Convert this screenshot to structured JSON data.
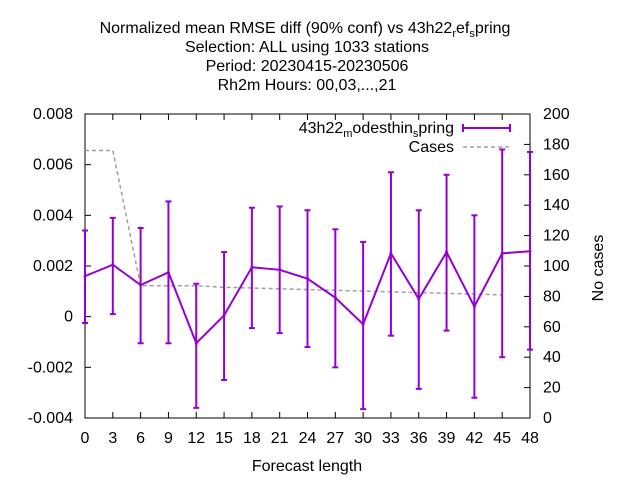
{
  "chart_data": {
    "type": "line",
    "title_lines": [
      "Normalized mean RMSE diff (90% conf) vs 43h22_ref_spring",
      "Selection: ALL using  1033 stations",
      "Period: 20230415-20230506",
      "Rh2m   Hours:  00,03,...,21"
    ],
    "title_line1_parts": {
      "base": "Normalized mean RMSE diff (90% conf) vs 43h22",
      "sub1": "r",
      "mid": "ef",
      "sub2": "s",
      "end": "pring"
    },
    "xlabel": "Forecast length",
    "ylabel": "",
    "y2label": "No cases",
    "xlim": [
      0,
      48
    ],
    "ylim": [
      -0.004,
      0.008
    ],
    "y2lim": [
      0,
      200
    ],
    "xticks": [
      "0",
      "3",
      "6",
      "9",
      "12",
      "15",
      "18",
      "21",
      "24",
      "27",
      "30",
      "33",
      "36",
      "39",
      "42",
      "45",
      "48"
    ],
    "yticks": [
      "-0.004",
      "-0.002",
      "0",
      "0.002",
      "0.004",
      "0.006",
      "0.008"
    ],
    "y2ticks": [
      "0",
      "20",
      "40",
      "60",
      "80",
      "100",
      "120",
      "140",
      "160",
      "180",
      "200"
    ],
    "grid": false,
    "legend_position": "top-right",
    "series": [
      {
        "name": "43h22_modesthin_spring",
        "legend_parts": {
          "base": "43h22",
          "sub1": "m",
          "mid": "odesthin",
          "sub2": "s",
          "end": "pring"
        },
        "color": "#9400d3",
        "axis": "y",
        "style": "errorbar",
        "x": [
          0,
          3,
          6,
          9,
          12,
          15,
          18,
          21,
          24,
          27,
          30,
          33,
          36,
          39,
          42,
          45,
          48
        ],
        "y": [
          0.0016,
          0.00205,
          0.00125,
          0.00175,
          -0.00105,
          5e-05,
          0.00195,
          0.00185,
          0.0015,
          0.00075,
          -0.0003,
          0.0025,
          0.0007,
          0.00255,
          0.0004,
          0.0025,
          0.00258
        ],
        "ylow": [
          -0.00025,
          0.0001,
          -0.00105,
          -0.00105,
          -0.0036,
          -0.0025,
          -0.00045,
          -0.00065,
          -0.0012,
          -0.002,
          -0.00365,
          -0.00075,
          -0.00285,
          -0.00055,
          -0.0032,
          -0.0016,
          -0.0013
        ],
        "yhigh": [
          0.0034,
          0.0039,
          0.0035,
          0.00455,
          0.0013,
          0.00255,
          0.0043,
          0.00435,
          0.0042,
          0.00345,
          0.00295,
          0.0057,
          0.0042,
          0.0056,
          0.004,
          0.0066,
          0.0065
        ]
      },
      {
        "name": "Cases",
        "color": "#a0a0a0",
        "axis": "y2",
        "style": "dashed-line",
        "x": [
          0,
          3,
          6,
          9,
          12,
          15,
          18,
          21,
          24,
          27,
          30,
          33,
          36,
          39,
          42,
          45
        ],
        "y": [
          176,
          176,
          87,
          87,
          87,
          86,
          85.5,
          85,
          84.5,
          84,
          83.5,
          83,
          82.5,
          82,
          81.5,
          81
        ]
      }
    ]
  }
}
